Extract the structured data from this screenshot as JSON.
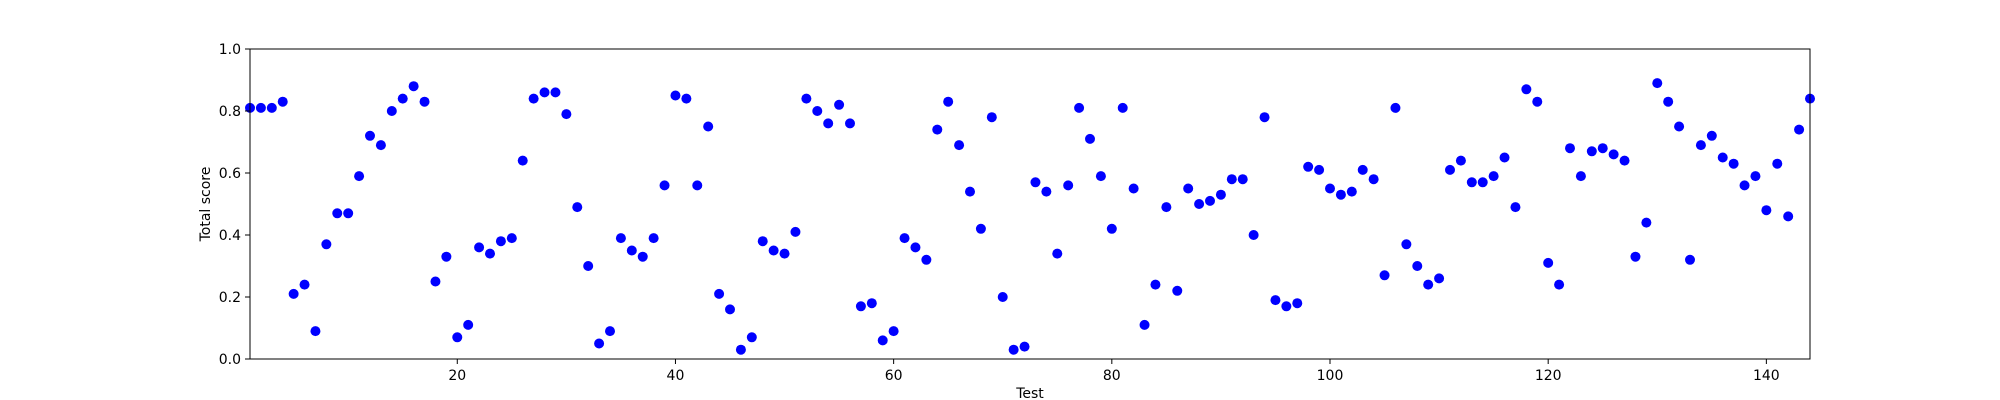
{
  "chart_data": {
    "type": "scatter",
    "xlabel": "Test",
    "ylabel": "Total score",
    "xlim": [
      1,
      144
    ],
    "ylim": [
      0.0,
      1.0
    ],
    "xticks": [
      20,
      40,
      60,
      80,
      100,
      120,
      140
    ],
    "yticks": [
      0.0,
      0.2,
      0.4,
      0.6,
      0.8,
      1.0
    ],
    "xtick_labels": [
      "20",
      "40",
      "60",
      "80",
      "100",
      "120",
      "140"
    ],
    "ytick_labels": [
      "0.0",
      "0.2",
      "0.4",
      "0.6",
      "0.8",
      "1.0"
    ],
    "grid": false,
    "marker_color": "#0000ff",
    "x": [
      1,
      2,
      3,
      4,
      5,
      6,
      7,
      8,
      9,
      10,
      11,
      12,
      13,
      14,
      15,
      16,
      17,
      18,
      19,
      20,
      21,
      22,
      23,
      24,
      25,
      26,
      27,
      28,
      29,
      30,
      31,
      32,
      33,
      34,
      35,
      36,
      37,
      38,
      39,
      40,
      41,
      42,
      43,
      44,
      45,
      46,
      47,
      48,
      49,
      50,
      51,
      52,
      53,
      54,
      55,
      56,
      57,
      58,
      59,
      60,
      61,
      62,
      63,
      64,
      65,
      66,
      67,
      68,
      69,
      70,
      71,
      72,
      73,
      74,
      75,
      76,
      77,
      78,
      79,
      80,
      81,
      82,
      83,
      84,
      85,
      86,
      87,
      88,
      89,
      90,
      91,
      92,
      93,
      94,
      95,
      96,
      97,
      98,
      99,
      100,
      101,
      102,
      103,
      104,
      105,
      106,
      107,
      108,
      109,
      110,
      111,
      112,
      113,
      114,
      115,
      116,
      117,
      118,
      119,
      120,
      121,
      122,
      123,
      124,
      125,
      126,
      127,
      128,
      129,
      130,
      131,
      132,
      133,
      134,
      135,
      136,
      137,
      138,
      139,
      140,
      141,
      142,
      143,
      144
    ],
    "y": [
      0.81,
      0.81,
      0.81,
      0.83,
      0.21,
      0.24,
      0.09,
      0.37,
      0.47,
      0.47,
      0.59,
      0.72,
      0.69,
      0.8,
      0.84,
      0.88,
      0.83,
      0.25,
      0.33,
      0.07,
      0.11,
      0.36,
      0.34,
      0.38,
      0.39,
      0.64,
      0.84,
      0.86,
      0.86,
      0.79,
      0.49,
      0.3,
      0.05,
      0.09,
      0.39,
      0.35,
      0.33,
      0.39,
      0.56,
      0.85,
      0.84,
      0.56,
      0.75,
      0.21,
      0.16,
      0.03,
      0.07,
      0.38,
      0.35,
      0.34,
      0.41,
      0.84,
      0.8,
      0.76,
      0.82,
      0.76,
      0.17,
      0.18,
      0.06,
      0.09,
      0.39,
      0.36,
      0.32,
      0.74,
      0.83,
      0.69,
      0.54,
      0.42,
      0.78,
      0.2,
      0.03,
      0.04,
      0.57,
      0.54,
      0.34,
      0.56,
      0.81,
      0.71,
      0.59,
      0.42,
      0.81,
      0.55,
      0.11,
      0.24,
      0.49,
      0.22,
      0.55,
      0.5,
      0.51,
      0.53,
      0.58,
      0.58,
      0.4,
      0.78,
      0.19,
      0.17,
      0.18,
      0.62,
      0.61,
      0.55,
      0.53,
      0.54,
      0.61,
      0.58,
      0.27,
      0.81,
      0.37,
      0.3,
      0.24,
      0.26,
      0.61,
      0.64,
      0.57,
      0.57,
      0.59,
      0.65,
      0.49,
      0.87,
      0.83,
      0.31,
      0.24,
      0.68,
      0.59,
      0.67,
      0.68,
      0.66,
      0.64,
      0.33,
      0.44,
      0.89,
      0.83,
      0.75,
      0.32,
      0.69,
      0.72,
      0.65,
      0.63,
      0.56,
      0.59,
      0.48,
      0.63,
      0.46,
      0.74,
      0.84
    ]
  }
}
